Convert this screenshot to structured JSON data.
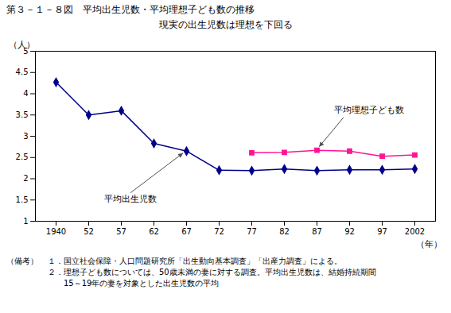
{
  "chart_data": {
    "type": "line",
    "title": "第３－１－８図　平均出生児数・平均理想子ども数の推移",
    "subtitle": "現実の出生児数は理想を下回る",
    "ylabel": "（人）",
    "xlabel": "（年）",
    "categories": [
      "1940",
      "52",
      "57",
      "62",
      "67",
      "72",
      "77",
      "82",
      "87",
      "92",
      "97",
      "2002"
    ],
    "series": [
      {
        "name": "平均出生児数",
        "color": "#00008B",
        "marker": "diamond",
        "values": [
          4.27,
          3.5,
          3.6,
          2.83,
          2.65,
          2.2,
          2.19,
          2.23,
          2.19,
          2.21,
          2.21,
          2.23
        ]
      },
      {
        "name": "平均理想子ども数",
        "color": "#FF1493",
        "marker": "square",
        "values": [
          null,
          null,
          null,
          null,
          null,
          null,
          2.61,
          2.62,
          2.67,
          2.65,
          2.53,
          2.56
        ]
      }
    ],
    "ylim": [
      1,
      5
    ],
    "yticks": [
      1,
      1.5,
      2,
      2.5,
      3,
      3.5,
      4,
      4.5,
      5
    ],
    "grid": false,
    "notes_label": "（備考）",
    "notes": [
      "１．国立社会保障・人口問題研究所「出生動向基本調査」「出産力調査」による。",
      "２．理想子ども数については、50歳未満の妻に対する調査。平均出生児数は、結婚持続期間",
      "　　15～19年の妻を対象とした出生児数の平均"
    ]
  }
}
